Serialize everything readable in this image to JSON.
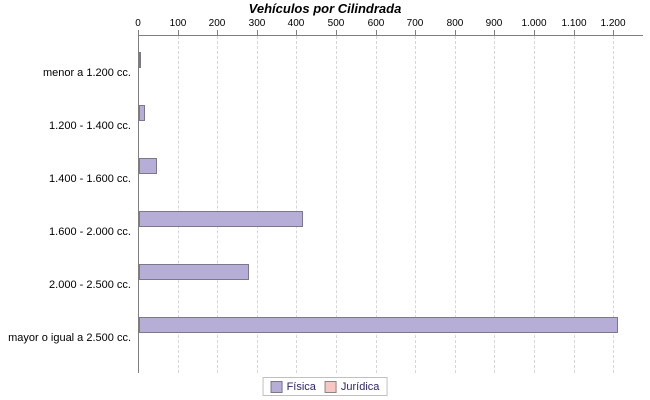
{
  "title": "Vehículos por Cilindrada",
  "chart_data": {
    "type": "bar",
    "orientation": "horizontal",
    "title": "Vehículos por Cilindrada",
    "categories": [
      "menor a 1.200 cc.",
      "1.200 - 1.400 cc.",
      "1.400 - 1.600 cc.",
      "1.600 - 2.000 cc.",
      "2.000 - 2.500 cc.",
      "mayor o igual a 2.500 cc."
    ],
    "series": [
      {
        "name": "Física",
        "values": [
          6,
          15,
          45,
          415,
          278,
          1210
        ],
        "fill_color": "#b6aed6",
        "border_color": "#7c7789"
      },
      {
        "name": "Jurídica",
        "values": [
          0,
          0,
          0,
          0,
          0,
          0
        ],
        "fill_color": "#f8c7c4",
        "border_color": "#8c8585"
      }
    ],
    "xlim": [
      0,
      1275
    ],
    "x_ticks": [
      0,
      100,
      200,
      300,
      400,
      500,
      600,
      700,
      800,
      900,
      1000,
      1100,
      1200
    ],
    "x_tick_labels": [
      "0",
      "100",
      "200",
      "300",
      "400",
      "500",
      "600",
      "700",
      "800",
      "900",
      "1.000",
      "1.100",
      "1.200"
    ],
    "grid": "vertical-dashed",
    "legend_position": "bottom"
  },
  "legend": {
    "items": [
      {
        "label": "Física",
        "fill_color": "#b6aed6",
        "border_color": "#7c7789"
      },
      {
        "label": "Jurídica",
        "fill_color": "#f8c7c4",
        "border_color": "#8c8585"
      }
    ]
  },
  "colors": {
    "background": "#ffffff",
    "axis_line": "#7f7f7f",
    "gridline": "#d6d6d6",
    "title_text": "#000000",
    "axis_text": "#000000",
    "legend_text": "#2f2566",
    "legend_border": "#c0c0c0"
  }
}
